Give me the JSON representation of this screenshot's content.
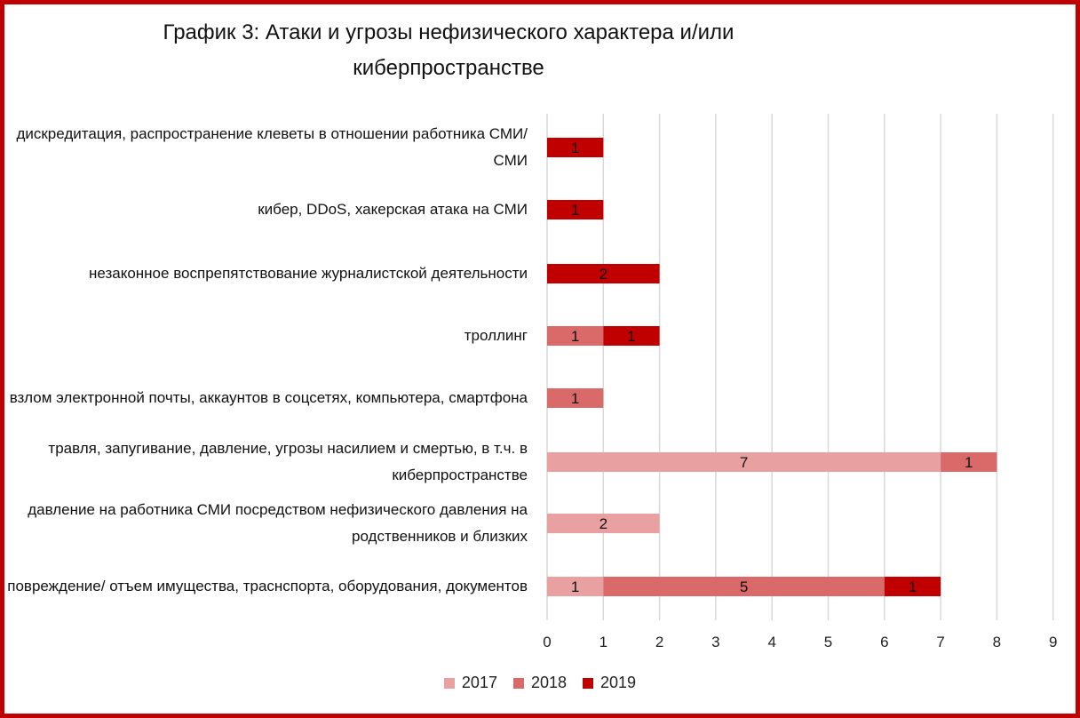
{
  "chart_data": {
    "type": "bar",
    "orientation": "horizontal",
    "stacked": true,
    "title": "График 3: Атаки и угрозы нефизического характера и/или киберпространстве",
    "categories": [
      "дискредитация, распространение клеветы в отношении работника СМИ/СМИ",
      "кибер, DDoS, хакерская атака на СМИ",
      "незаконное воспрепятствование журналистской деятельности",
      "троллинг",
      "взлом электронной почты, аккаунтов в соцсетях, компьютера, смартфона",
      "травля, запугивание, давление, угрозы насилием и смертью, в т.ч. в киберпространстве",
      "давление на работника СМИ посредством нефизического давления на родственников и близких",
      "повреждение/ отъем имущества, трасн­спорта, оборудования, документов"
    ],
    "series": [
      {
        "name": "2017",
        "color": "#e8a0a0",
        "values": [
          0,
          0,
          0,
          0,
          0,
          7,
          2,
          1
        ]
      },
      {
        "name": "2018",
        "color": "#da6a6a",
        "values": [
          0,
          0,
          0,
          1,
          1,
          1,
          0,
          5
        ]
      },
      {
        "name": "2019",
        "color": "#c00000",
        "values": [
          1,
          1,
          2,
          1,
          0,
          0,
          0,
          1
        ]
      }
    ],
    "xlim": [
      0,
      9
    ],
    "xticks": [
      0,
      1,
      2,
      3,
      4,
      5,
      6,
      7,
      8,
      9
    ],
    "grid": true,
    "legend_position": "bottom"
  }
}
